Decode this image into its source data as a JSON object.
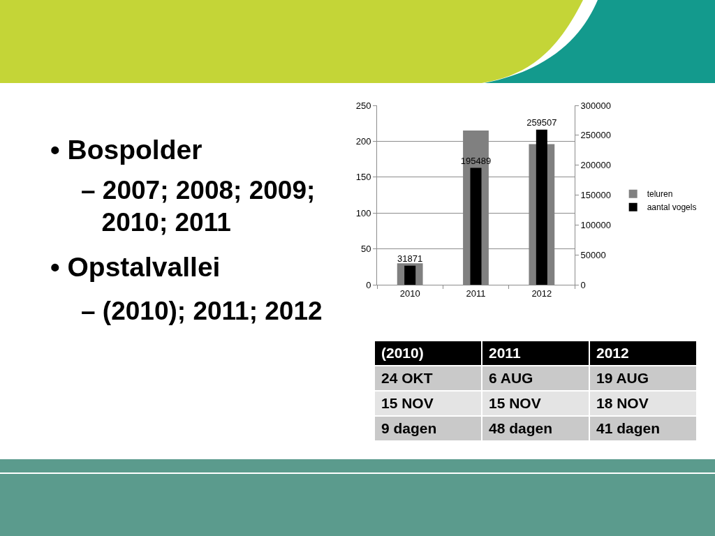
{
  "chart_data": [
    {
      "type": "other",
      "annotations": [
        "• Bospolder",
        "– 2007; 2008; 2009; 2010; 2011",
        "• Opstalvallei",
        "– (2010); 2011; 2012"
      ]
    },
    {
      "type": "bar",
      "categories": [
        "2010",
        "2011",
        "2012"
      ],
      "series": [
        {
          "name": "teluren",
          "color": "#808080",
          "values": [
            30,
            215,
            196
          ]
        },
        {
          "name": "aantal vogels",
          "color": "#000000",
          "values": [
            31871,
            195489,
            259507
          ],
          "axis": "y2",
          "value_labels": [
            "31871",
            "195489",
            "259507"
          ]
        }
      ],
      "ylim": [
        0,
        250
      ],
      "yticks": [
        0,
        50,
        100,
        150,
        200,
        250
      ],
      "y2lim": [
        0,
        300000
      ],
      "y2ticks": [
        0,
        50000,
        100000,
        150000,
        200000,
        250000,
        300000
      ],
      "grid": "y",
      "legend": "right"
    },
    {
      "type": "other",
      "categories": [
        "(2010)",
        "2011",
        "2012"
      ],
      "annotations": [
        "24 OKT",
        "6 AUG",
        "19 AUG",
        "15 NOV",
        "15 NOV",
        "18 NOV",
        "9 dagen",
        "48 dagen",
        "41 dagen"
      ]
    }
  ]
}
